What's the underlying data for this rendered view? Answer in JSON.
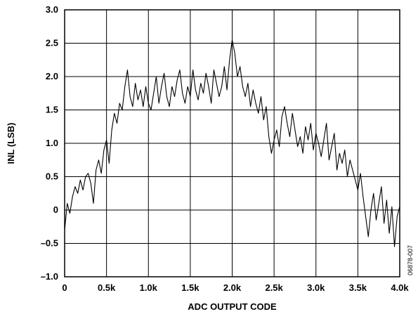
{
  "chart_data": {
    "type": "line",
    "title": "",
    "xlabel": "ADC OUTPUT CODE",
    "ylabel": "INL (LSB)",
    "xlim": [
      0,
      4096
    ],
    "ylim": [
      -1.0,
      3.0
    ],
    "x_ticks": [
      0,
      512,
      1024,
      1536,
      2048,
      2560,
      3072,
      3584,
      4096
    ],
    "x_tick_labels": [
      "0",
      "0.5k",
      "1.0k",
      "1.5k",
      "2.0k",
      "2.5k",
      "3.0k",
      "3.5k",
      "4.0k"
    ],
    "y_ticks": [
      -1.0,
      -0.5,
      0,
      0.5,
      1.0,
      1.5,
      2.0,
      2.5,
      3.0
    ],
    "y_tick_labels": [
      "–1.0",
      "–0.5",
      "0",
      "0.5",
      "1.0",
      "1.5",
      "2.0",
      "2.5",
      "3.0"
    ],
    "grid": true,
    "figure_id": "06878-007",
    "series": [
      {
        "x": [
          0,
          32,
          64,
          96,
          128,
          160,
          192,
          224,
          256,
          288,
          320,
          352,
          384,
          416,
          448,
          480,
          512,
          544,
          576,
          608,
          640,
          672,
          704,
          736,
          768,
          800,
          832,
          864,
          896,
          928,
          960,
          992,
          1024,
          1056,
          1088,
          1120,
          1152,
          1184,
          1216,
          1248,
          1280,
          1312,
          1344,
          1376,
          1408,
          1440,
          1472,
          1504,
          1536,
          1568,
          1600,
          1632,
          1664,
          1696,
          1728,
          1760,
          1792,
          1824,
          1856,
          1888,
          1920,
          1952,
          1984,
          2016,
          2048,
          2080,
          2112,
          2144,
          2176,
          2208,
          2240,
          2272,
          2304,
          2336,
          2368,
          2400,
          2432,
          2464,
          2496,
          2528,
          2560,
          2592,
          2624,
          2656,
          2688,
          2720,
          2752,
          2784,
          2816,
          2848,
          2880,
          2912,
          2944,
          2976,
          3008,
          3040,
          3072,
          3104,
          3136,
          3168,
          3200,
          3232,
          3264,
          3296,
          3328,
          3360,
          3392,
          3424,
          3456,
          3488,
          3520,
          3552,
          3584,
          3616,
          3648,
          3680,
          3712,
          3744,
          3776,
          3808,
          3840,
          3872,
          3904,
          3936,
          3968,
          4000,
          4032,
          4064,
          4095
        ],
        "y": [
          -0.3,
          0.1,
          -0.05,
          0.2,
          0.35,
          0.25,
          0.45,
          0.3,
          0.5,
          0.55,
          0.4,
          0.1,
          0.6,
          0.75,
          0.55,
          0.9,
          1.05,
          0.7,
          1.2,
          1.45,
          1.3,
          1.6,
          1.5,
          1.85,
          2.1,
          1.7,
          1.55,
          1.9,
          1.65,
          1.8,
          1.55,
          1.85,
          1.6,
          1.5,
          1.75,
          2.0,
          1.6,
          1.85,
          2.05,
          1.7,
          1.55,
          1.85,
          1.7,
          1.95,
          2.1,
          1.75,
          1.6,
          1.85,
          1.7,
          2.1,
          1.8,
          1.65,
          1.9,
          1.75,
          2.05,
          1.85,
          1.6,
          2.1,
          1.9,
          1.7,
          1.85,
          2.15,
          1.8,
          2.25,
          2.55,
          2.35,
          2.0,
          2.15,
          1.85,
          1.7,
          1.9,
          1.55,
          1.8,
          1.6,
          1.45,
          1.7,
          1.35,
          1.55,
          1.1,
          0.85,
          1.05,
          1.2,
          0.95,
          1.4,
          1.55,
          1.3,
          1.1,
          1.45,
          1.2,
          0.95,
          1.1,
          0.85,
          1.25,
          1.05,
          1.3,
          0.9,
          1.15,
          1.0,
          0.8,
          1.05,
          1.3,
          0.75,
          0.95,
          1.15,
          0.6,
          0.85,
          0.7,
          0.9,
          0.5,
          0.75,
          0.6,
          0.45,
          0.3,
          0.55,
          0.2,
          -0.1,
          -0.4,
          0.0,
          0.25,
          -0.15,
          0.1,
          0.35,
          -0.2,
          0.15,
          -0.35,
          0.05,
          -0.55,
          -0.1,
          0.05
        ]
      }
    ]
  }
}
